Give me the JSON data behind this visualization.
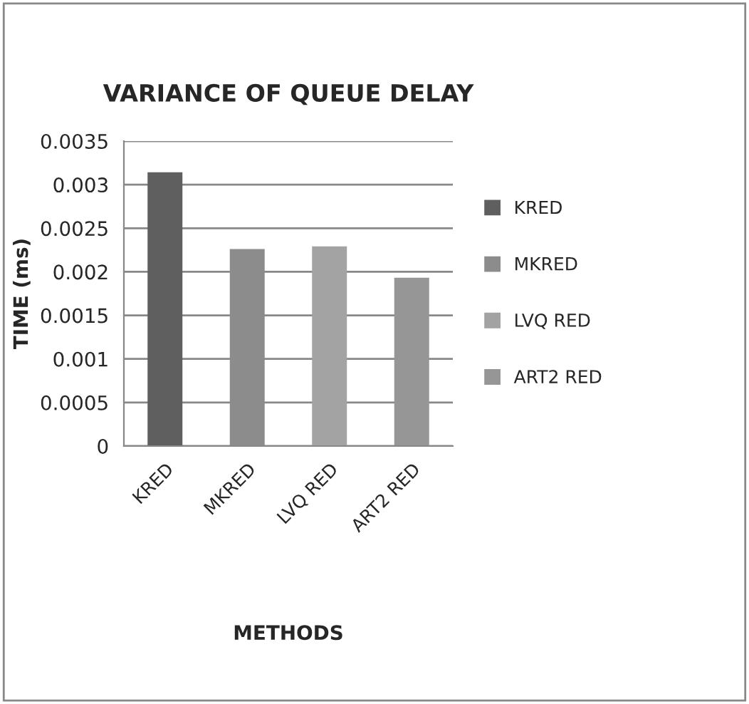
{
  "chart_data": {
    "type": "bar",
    "title": "VARIANCE OF QUEUE DELAY",
    "xlabel": "METHODS",
    "ylabel": "TIME (ms)",
    "categories": [
      "KRED",
      "MKRED",
      "LVQ RED",
      "ART2 RED"
    ],
    "series": [
      {
        "name": "KRED",
        "color": "#5f5f5f",
        "values": [
          0.00313,
          null,
          null,
          null
        ]
      },
      {
        "name": "MKRED",
        "color": "#8c8c8c",
        "values": [
          null,
          0.00225,
          null,
          null
        ]
      },
      {
        "name": "LVQ RED",
        "color": "#a3a3a3",
        "values": [
          null,
          null,
          0.00228,
          null
        ]
      },
      {
        "name": "ART2 RED",
        "color": "#969696",
        "values": [
          null,
          null,
          null,
          0.00192
        ]
      }
    ],
    "ylim": [
      0,
      0.0035
    ],
    "yticks": [
      0,
      0.0005,
      0.001,
      0.0015,
      0.002,
      0.0025,
      0.003,
      0.0035
    ],
    "grid": "y",
    "legend": "right"
  }
}
